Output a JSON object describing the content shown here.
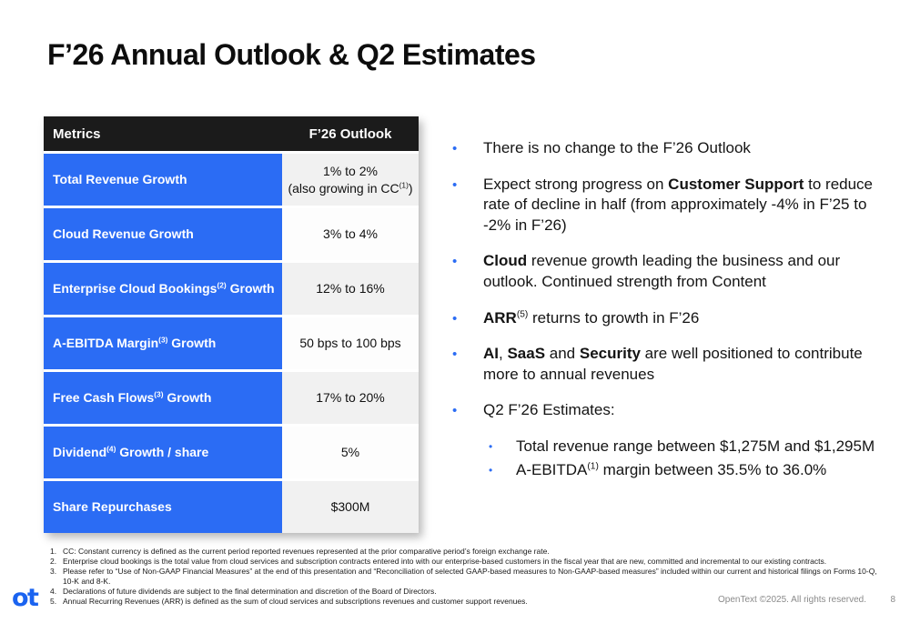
{
  "colors": {
    "accent_blue": "#2B6CF4",
    "header_black": "#1B1B1B",
    "value_cell_gray": "#F1F1F1",
    "logo_blue": "#1A63F0"
  },
  "slide": {
    "title": "F’26 Annual Outlook & Q2 Estimates",
    "logo_text": "ot",
    "copyright": "OpenText ©2025. All rights reserved.",
    "page_number": "8"
  },
  "table": {
    "headers": [
      "Metrics",
      "F’26 Outlook"
    ],
    "rows": [
      {
        "metric": [
          {
            "t": "Total Revenue Growth"
          }
        ],
        "value": [
          {
            "t": "1% to 2%"
          },
          {
            "br": true
          },
          {
            "t": "(also growing in CC"
          },
          {
            "t": "(1)",
            "sup": true
          },
          {
            "t": ")"
          }
        ]
      },
      {
        "metric": [
          {
            "t": "Cloud Revenue Growth"
          }
        ],
        "value": [
          {
            "t": "3% to 4%"
          }
        ]
      },
      {
        "metric": [
          {
            "t": "Enterprise Cloud Bookings"
          },
          {
            "t": "(2)",
            "sup": true
          },
          {
            "t": " Growth"
          }
        ],
        "value": [
          {
            "t": "12% to 16%"
          }
        ]
      },
      {
        "metric": [
          {
            "t": "A-EBITDA Margin"
          },
          {
            "t": "(3)",
            "sup": true
          },
          {
            "t": " Growth"
          }
        ],
        "value": [
          {
            "t": "50 bps to 100 bps"
          }
        ]
      },
      {
        "metric": [
          {
            "t": "Free Cash Flows"
          },
          {
            "t": "(3)",
            "sup": true
          },
          {
            "t": " Growth"
          }
        ],
        "value": [
          {
            "t": "17% to 20%"
          }
        ]
      },
      {
        "metric": [
          {
            "t": "Dividend"
          },
          {
            "t": "(4)",
            "sup": true
          },
          {
            "t": " Growth / share"
          }
        ],
        "value": [
          {
            "t": "5%"
          }
        ]
      },
      {
        "metric": [
          {
            "t": "Share Repurchases"
          }
        ],
        "value": [
          {
            "t": "$300M"
          }
        ]
      }
    ]
  },
  "bullets": [
    {
      "segments": [
        {
          "t": "There is no change to the F’26 Outlook"
        }
      ]
    },
    {
      "segments": [
        {
          "t": "Expect strong progress on "
        },
        {
          "t": "Customer Support",
          "b": true
        },
        {
          "t": " to reduce rate of decline in half (from approximately -4% in F’25 to -2% in F’26)"
        }
      ]
    },
    {
      "segments": [
        {
          "t": "Cloud",
          "b": true
        },
        {
          "t": " revenue growth leading the business and our outlook. Continued strength from Content"
        }
      ]
    },
    {
      "segments": [
        {
          "t": "ARR",
          "b": true
        },
        {
          "t": "(5)",
          "sup": true
        },
        {
          "t": " returns to growth in F’26"
        }
      ]
    },
    {
      "segments": [
        {
          "t": "AI",
          "b": true
        },
        {
          "t": ", "
        },
        {
          "t": "SaaS",
          "b": true
        },
        {
          "t": " and "
        },
        {
          "t": "Security",
          "b": true
        },
        {
          "t": " are well positioned to contribute more to annual revenues"
        }
      ]
    },
    {
      "segments": [
        {
          "t": "Q2 F’26 Estimates:"
        }
      ]
    },
    {
      "sub": true,
      "segments": [
        {
          "t": "Total revenue range between $1,275M and $1,295M"
        }
      ]
    },
    {
      "sub": true,
      "segments": [
        {
          "t": "A-EBITDA"
        },
        {
          "t": "(1)",
          "sup": true
        },
        {
          "t": " margin between 35.5% to 36.0%"
        }
      ]
    }
  ],
  "footnotes": [
    "CC: Constant currency is defined as the current period reported revenues represented at the prior comparative period’s foreign exchange rate.",
    "Enterprise cloud bookings is the total value from cloud services and subscription contracts entered into with our enterprise-based customers in the fiscal year that are new, committed and incremental to our existing contracts.",
    "Please refer to “Use of Non-GAAP Financial Measures” at the end of this presentation and “Reconciliation of selected GAAP-based measures to Non-GAAP-based measures” included within our current and historical filings on Forms 10-Q, 10-K and 8-K.",
    "Declarations of future dividends are subject to the final determination and discretion of the Board of Directors.",
    "Annual Recurring Revenues (ARR) is defined as the sum of cloud services and subscriptions revenues and customer support revenues."
  ]
}
